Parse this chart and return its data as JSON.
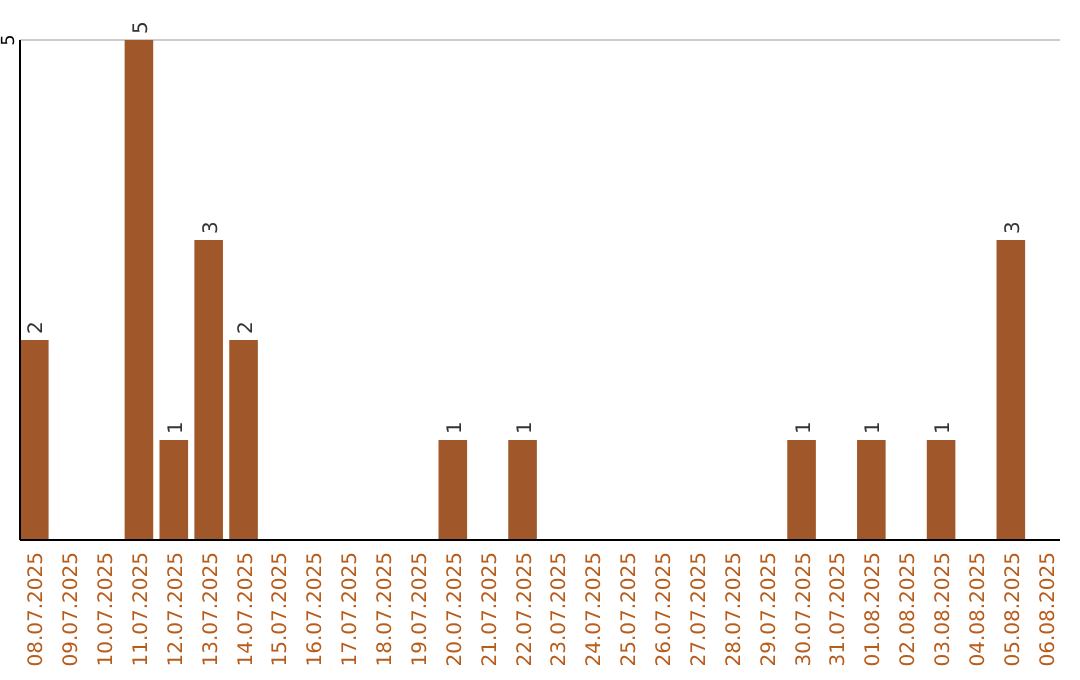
{
  "chart_data": {
    "type": "bar",
    "categories": [
      "08.07.2025",
      "09.07.2025",
      "10.07.2025",
      "11.07.2025",
      "12.07.2025",
      "13.07.2025",
      "14.07.2025",
      "15.07.2025",
      "16.07.2025",
      "17.07.2025",
      "18.07.2025",
      "19.07.2025",
      "20.07.2025",
      "21.07.2025",
      "22.07.2025",
      "23.07.2025",
      "24.07.2025",
      "25.07.2025",
      "26.07.2025",
      "27.07.2025",
      "28.07.2025",
      "29.07.2025",
      "30.07.2025",
      "31.07.2025",
      "01.08.2025",
      "02.08.2025",
      "03.08.2025",
      "04.08.2025",
      "05.08.2025",
      "06.08.2025"
    ],
    "values": [
      2,
      0,
      0,
      5,
      1,
      3,
      2,
      0,
      0,
      0,
      0,
      0,
      1,
      0,
      1,
      0,
      0,
      0,
      0,
      0,
      0,
      0,
      1,
      0,
      1,
      0,
      1,
      0,
      3,
      0
    ],
    "value_labels": [
      "2",
      null,
      null,
      "5",
      "1",
      "3",
      "2",
      null,
      null,
      null,
      null,
      null,
      "1",
      null,
      "1",
      null,
      null,
      null,
      null,
      null,
      null,
      null,
      "1",
      null,
      "1",
      null,
      "1",
      null,
      "3",
      null
    ],
    "color": "#a0582a",
    "ylim": [
      0,
      5
    ],
    "yticks": [
      5
    ],
    "ref_lines": [
      {
        "axis": "y",
        "value": 5,
        "color": "#cccccc"
      }
    ]
  }
}
